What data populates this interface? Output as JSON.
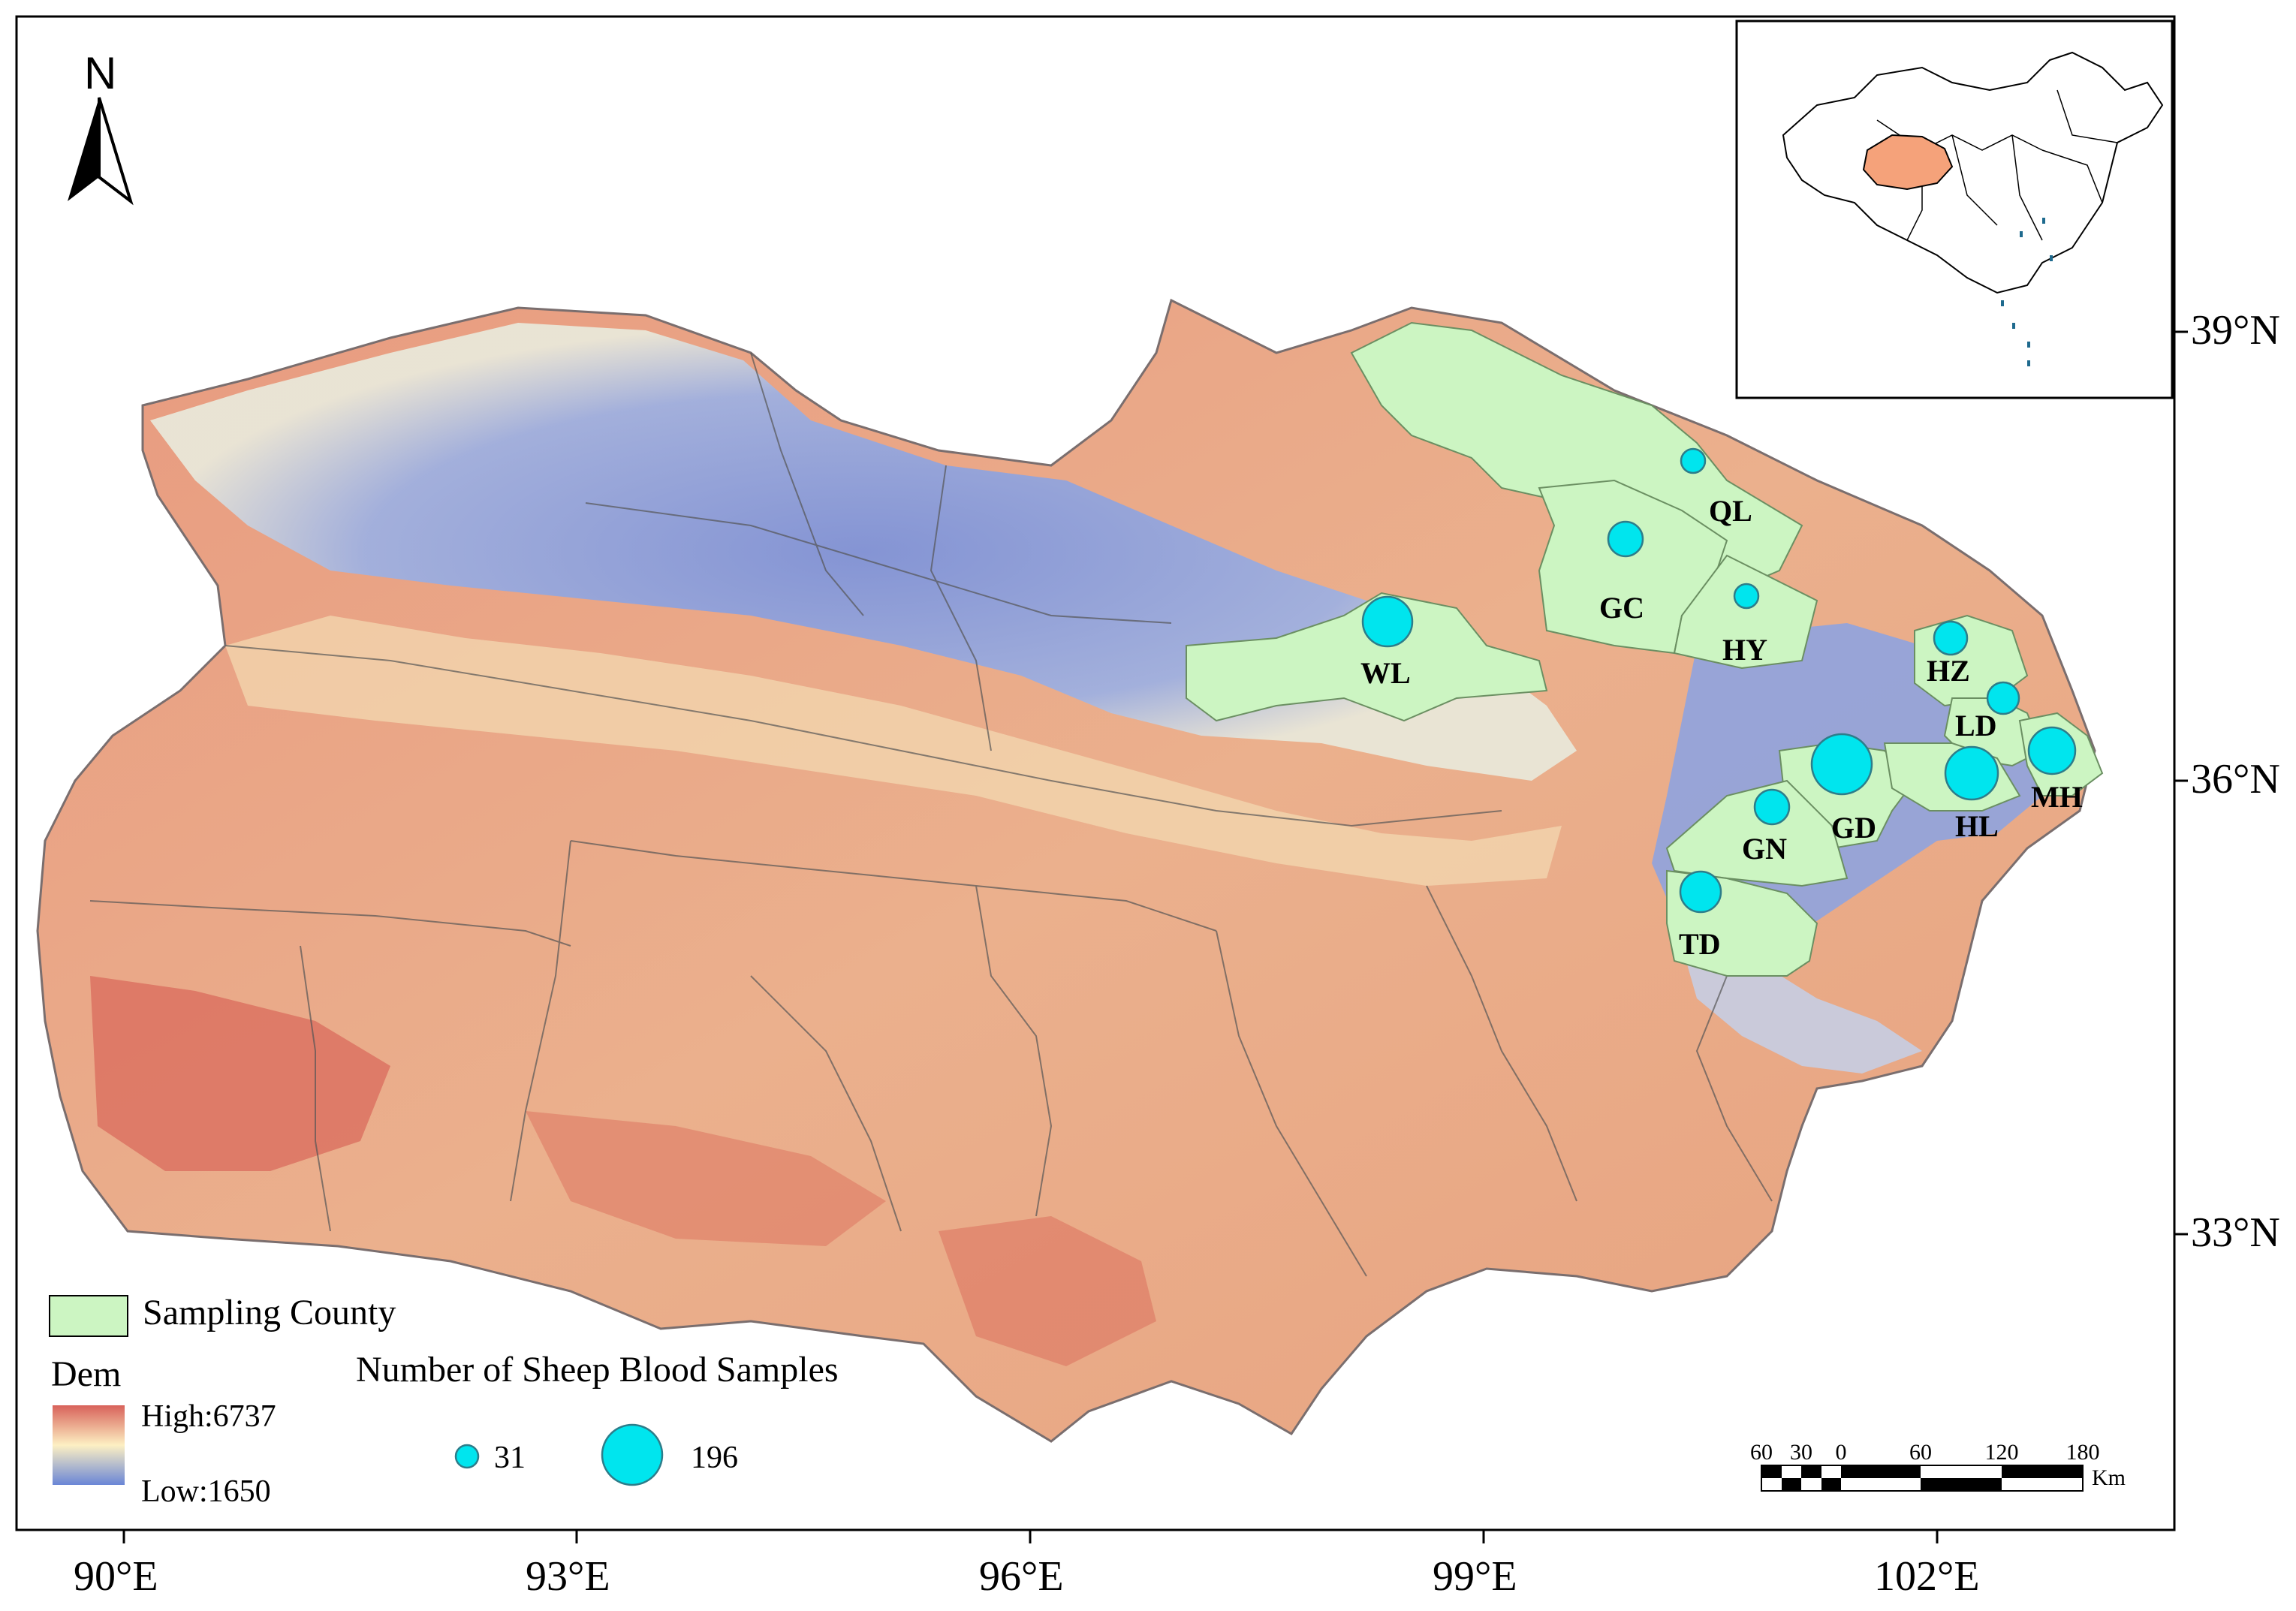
{
  "north_arrow": {
    "label": "N"
  },
  "axes": {
    "x_ticks": [
      "90°E",
      "93°E",
      "96°E",
      "99°E",
      "102°E"
    ],
    "y_ticks": [
      "39°N",
      "36°N",
      "33°N"
    ]
  },
  "counties": [
    {
      "code": "QL",
      "samples": 31
    },
    {
      "code": "GC",
      "samples": 70
    },
    {
      "code": "HY",
      "samples": 31
    },
    {
      "code": "WL",
      "samples": 150
    },
    {
      "code": "HZ",
      "samples": 70
    },
    {
      "code": "LD",
      "samples": 60
    },
    {
      "code": "MH",
      "samples": 130
    },
    {
      "code": "GD",
      "samples": 196
    },
    {
      "code": "HL",
      "samples": 160
    },
    {
      "code": "GN",
      "samples": 70
    },
    {
      "code": "TD",
      "samples": 90
    }
  ],
  "legend": {
    "sampling_county": "Sampling County",
    "dem_title": "Dem",
    "dem_high": "High:6737",
    "dem_low": "Low:1650",
    "samples_title": "Number of Sheep Blood Samples",
    "size_min": "31",
    "size_max": "196"
  },
  "scale_bar": {
    "ticks": [
      "60",
      "30",
      "0",
      "60",
      "120",
      "180"
    ],
    "unit": "Km"
  },
  "colors": {
    "sampling_county": "#ccf5c2",
    "sample_circle": "#00e5ee",
    "dem_high": "#d8625a",
    "dem_mid": "#fdf0c3",
    "dem_low": "#6a86d6",
    "qinghai_inset": "#f5a27a"
  }
}
